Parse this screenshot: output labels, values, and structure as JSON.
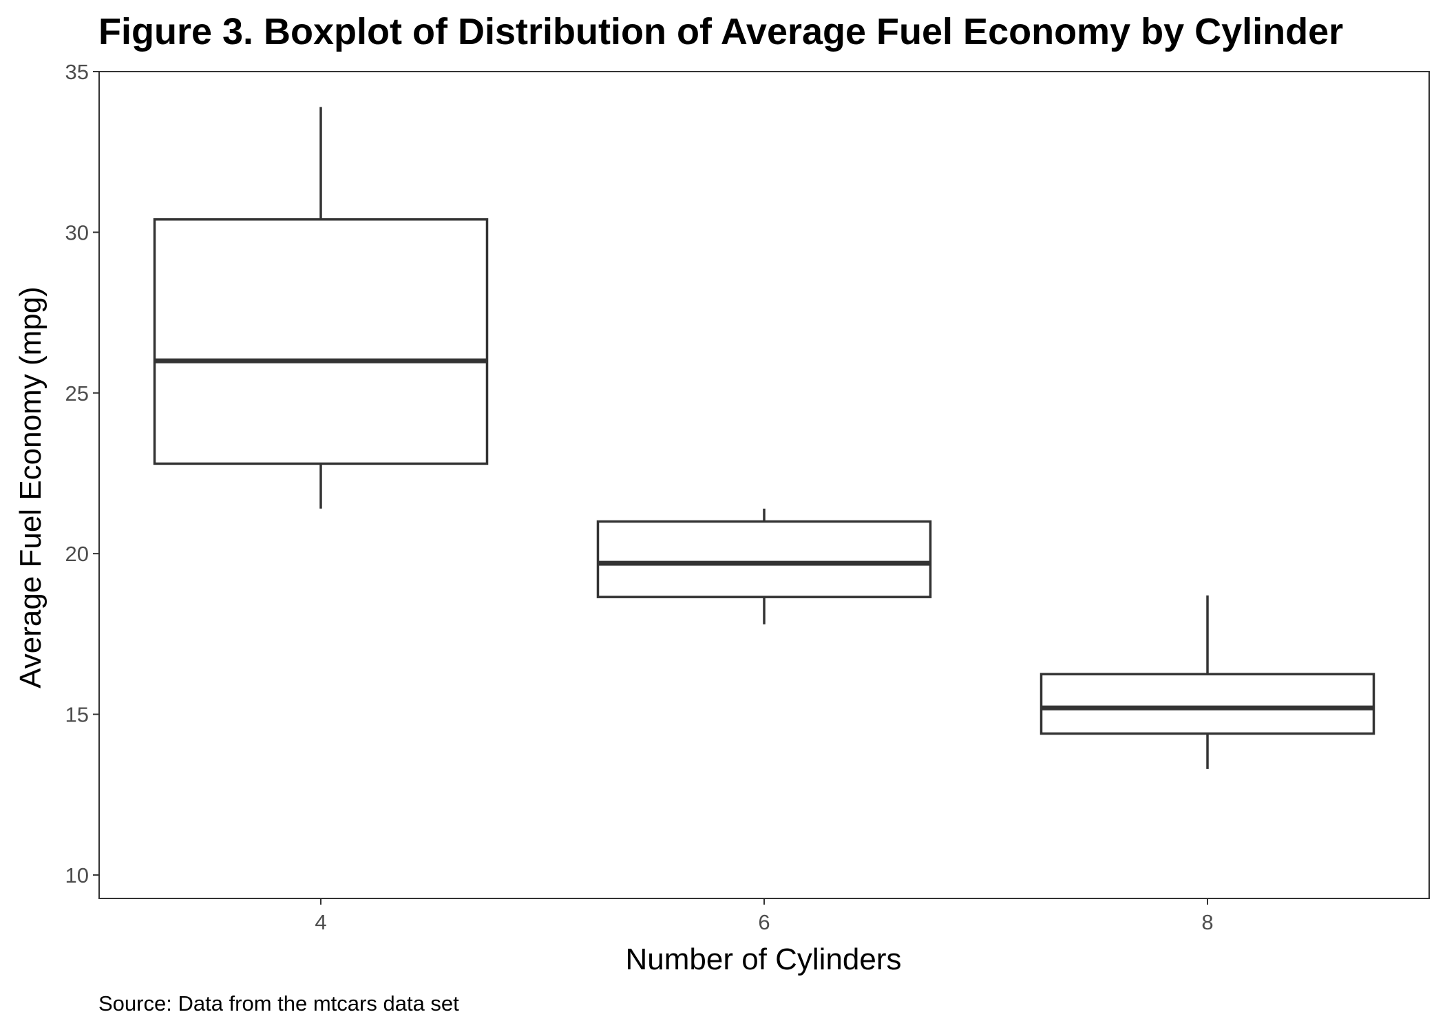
{
  "chart_data": {
    "type": "boxplot",
    "title": "Figure 3. Boxplot of Distribution of Average Fuel Economy by Cylinder",
    "xlabel": "Number of Cylinders",
    "ylabel": "Average Fuel Economy (mpg)",
    "caption": "Source: Data from the mtcars data set",
    "categories": [
      "4",
      "6",
      "8"
    ],
    "boxes": [
      {
        "category": "4",
        "min": 21.4,
        "q1": 22.8,
        "median": 26.0,
        "q3": 30.4,
        "max": 33.9
      },
      {
        "category": "6",
        "min": 17.8,
        "q1": 18.65,
        "median": 19.7,
        "q3": 21.0,
        "max": 21.4
      },
      {
        "category": "8",
        "min": 13.3,
        "q1": 14.4,
        "median": 15.2,
        "q3": 16.25,
        "max": 18.7
      }
    ],
    "yticks": [
      10,
      15,
      20,
      25,
      30,
      35
    ],
    "ylim": [
      9.27,
      35
    ],
    "grid": false,
    "legend": "none",
    "colors": {
      "box_line": "#333333",
      "box_fill": "#ffffff",
      "panel_border": "#333333",
      "tick_text": "#4d4d4d"
    }
  }
}
